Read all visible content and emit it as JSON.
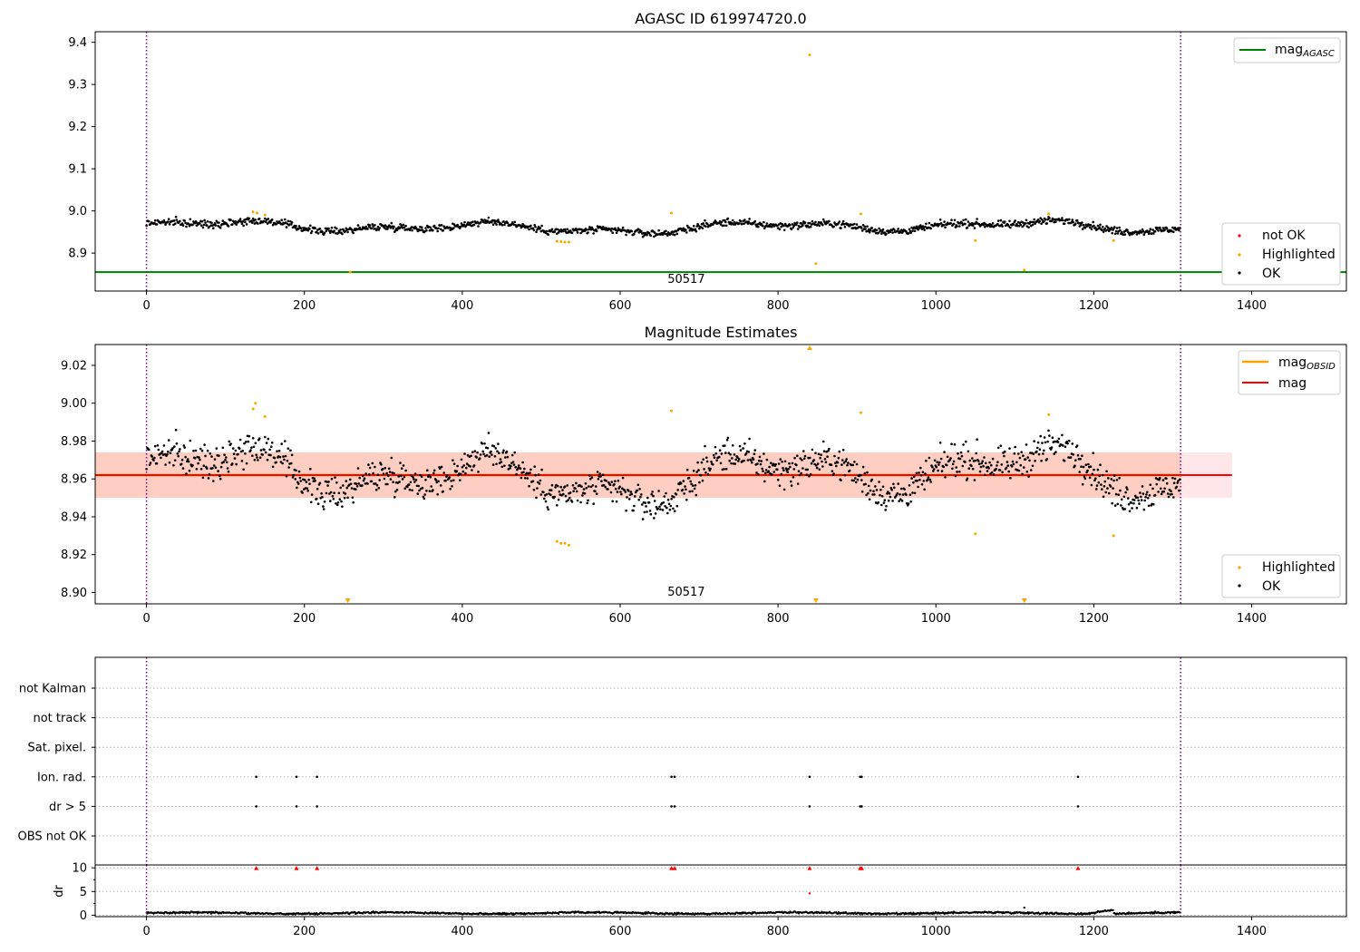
{
  "chart_data": [
    {
      "type": "scatter",
      "title": "AGASC ID 619974720.0",
      "xlabel": "",
      "ylabel": "",
      "xlim": [
        -65,
        1520
      ],
      "ylim": [
        8.81,
        9.425
      ],
      "xticks": [
        "0",
        "200",
        "400",
        "600",
        "800",
        "1000",
        "1200",
        "1400"
      ],
      "xtick_values": [
        0,
        200,
        400,
        600,
        800,
        1000,
        1200,
        1400
      ],
      "yticks": [
        "8.9",
        "9.0",
        "9.1",
        "9.2",
        "9.3",
        "9.4"
      ],
      "ytick_values": [
        8.9,
        9.0,
        9.1,
        9.2,
        9.3,
        9.4
      ],
      "vlines": [
        0,
        1310
      ],
      "obsid_label": "50517",
      "obsid_label_x": 655,
      "hline": {
        "name": "mag_AGASC",
        "legend_main": "mag",
        "legend_sub": "AGASC",
        "value": 8.855,
        "color": "#008000"
      },
      "legend_top": "top-right",
      "legend_bottom": "bottom-right",
      "series": [
        {
          "name": "not OK",
          "color": "#ff0000",
          "points": []
        },
        {
          "name": "Highlighted",
          "color": "#ffa500",
          "points": [
            [
              135,
              8.998
            ],
            [
              140,
              8.995
            ],
            [
              150,
              8.99
            ],
            [
              258,
              8.855
            ],
            [
              520,
              8.928
            ],
            [
              525,
              8.927
            ],
            [
              530,
              8.926
            ],
            [
              535,
              8.926
            ],
            [
              665,
              8.995
            ],
            [
              840,
              9.37
            ],
            [
              848,
              8.875
            ],
            [
              905,
              8.993
            ],
            [
              1050,
              8.93
            ],
            [
              1112,
              8.86
            ],
            [
              1143,
              8.993
            ],
            [
              1225,
              8.93
            ]
          ]
        },
        {
          "name": "OK",
          "color": "#000000",
          "n": 1300,
          "mean": 8.962,
          "scatter": 0.007
        }
      ]
    },
    {
      "type": "scatter",
      "title": "Magnitude Estimates",
      "xlabel": "",
      "ylabel": "",
      "xlim": [
        -65,
        1520
      ],
      "ylim": [
        8.894,
        9.031
      ],
      "xticks": [
        "0",
        "200",
        "400",
        "600",
        "800",
        "1000",
        "1200",
        "1400"
      ],
      "xtick_values": [
        0,
        200,
        400,
        600,
        800,
        1000,
        1200,
        1400
      ],
      "yticks": [
        "8.90",
        "8.92",
        "8.94",
        "8.96",
        "8.98",
        "9.00",
        "9.02"
      ],
      "ytick_values": [
        8.9,
        8.92,
        8.94,
        8.96,
        8.98,
        9.0,
        9.02
      ],
      "vlines": [
        0,
        1310
      ],
      "obsid_label": "50517",
      "obsid_label_x": 655,
      "mag": {
        "name": "mag",
        "value": 8.962,
        "color": "#ff0000"
      },
      "mag_obsid": {
        "legend_main": "mag",
        "legend_sub": "OBSID",
        "value": 8.962,
        "color": "#ffa500"
      },
      "band_obsid": {
        "low": 8.95,
        "high": 8.974,
        "x_end": 1310,
        "color": "#ffa07a"
      },
      "band_mag": {
        "low": 8.95,
        "high": 8.974,
        "x_end": 1375,
        "color": "#ffb6c1"
      },
      "legend_top": "top-right",
      "legend_bottom": "bottom-right",
      "series": [
        {
          "name": "Highlighted",
          "color": "#ffa500",
          "points": [
            [
              135,
              8.997
            ],
            [
              138,
              9.0
            ],
            [
              150,
              8.993
            ],
            [
              520,
              8.927
            ],
            [
              525,
              8.926
            ],
            [
              530,
              8.926
            ],
            [
              535,
              8.925
            ],
            [
              665,
              8.996
            ],
            [
              905,
              8.995
            ],
            [
              1050,
              8.931
            ],
            [
              1143,
              8.994
            ],
            [
              1225,
              8.93
            ]
          ]
        },
        {
          "name": "OK",
          "color": "#000000",
          "n": 1300,
          "mean": 8.962,
          "scatter": 0.007
        }
      ],
      "off_scale_up": [
        840
      ],
      "off_scale_down": [
        255,
        848,
        1112
      ]
    },
    {
      "type": "scatter",
      "title": "",
      "xlim": [
        -65,
        1520
      ],
      "xticks": [
        "0",
        "200",
        "400",
        "600",
        "800",
        "1000",
        "1200",
        "1400"
      ],
      "xtick_values": [
        0,
        200,
        400,
        600,
        800,
        1000,
        1200,
        1400
      ],
      "vlines": [
        0,
        1310
      ],
      "categories": [
        "not Kalman",
        "not track",
        "Sat. pixel.",
        "Ion. rad.",
        "dr > 5",
        "OBS not OK"
      ],
      "flag_points": {
        "not Kalman": [],
        "not track": [],
        "Sat. pixel.": [],
        "Ion. rad.": [
          139,
          190,
          216,
          665,
          669,
          840,
          904,
          906,
          1180
        ],
        "dr > 5": [
          139,
          190,
          216,
          665,
          669,
          840,
          904,
          906,
          1180
        ],
        "OBS not OK": []
      }
    },
    {
      "type": "scatter",
      "title": "",
      "ylabel": "dr",
      "xlim": [
        -65,
        1520
      ],
      "ylim": [
        -0.3,
        10.6
      ],
      "xticks": [
        "0",
        "200",
        "400",
        "600",
        "800",
        "1000",
        "1200",
        "1400"
      ],
      "xtick_values": [
        0,
        200,
        400,
        600,
        800,
        1000,
        1200,
        1400
      ],
      "yticks": [
        "0",
        "5",
        "10"
      ],
      "ytick_values": [
        0,
        5,
        10
      ],
      "vlines": [
        0,
        1310
      ],
      "capped_points": [
        139,
        190,
        216,
        665,
        669,
        840,
        904,
        906,
        1180
      ],
      "cap_value": 10,
      "extra_points": [
        [
          840,
          4.6
        ],
        [
          1112,
          1.6
        ]
      ],
      "baseline": {
        "n": 1300,
        "mean": 0.45,
        "scatter": 0.18
      }
    }
  ]
}
